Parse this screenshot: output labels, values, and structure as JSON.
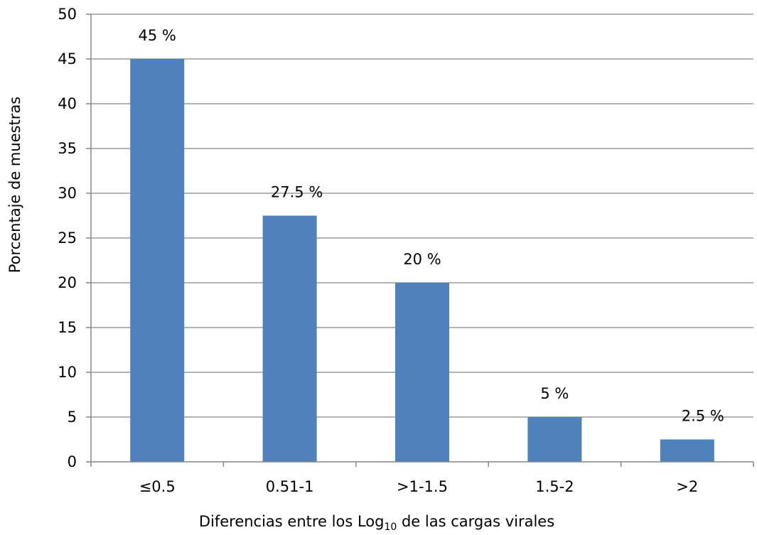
{
  "chart_data": {
    "type": "bar",
    "categories": [
      "≤0.5",
      "0.51-1",
      ">1-1.5",
      "1.5-2",
      ">2"
    ],
    "values": [
      45,
      27.5,
      20,
      5,
      2.5
    ],
    "data_labels": [
      "45 %",
      "27.5 %",
      "20 %",
      "5 %",
      "2.5 %"
    ],
    "xlabel": {
      "before": "Diferencias entre los Log",
      "subscript": "10",
      "after": " de las cargas virales"
    },
    "ylabel": "Porcentaje de muestras",
    "ylim": [
      0,
      50
    ],
    "ytick_step": 5,
    "yticks": [
      "0",
      "5",
      "10",
      "15",
      "20",
      "25",
      "30",
      "35",
      "40",
      "45",
      "50"
    ],
    "grid": true,
    "legend": "none",
    "bar_color": "#4f81bd"
  }
}
